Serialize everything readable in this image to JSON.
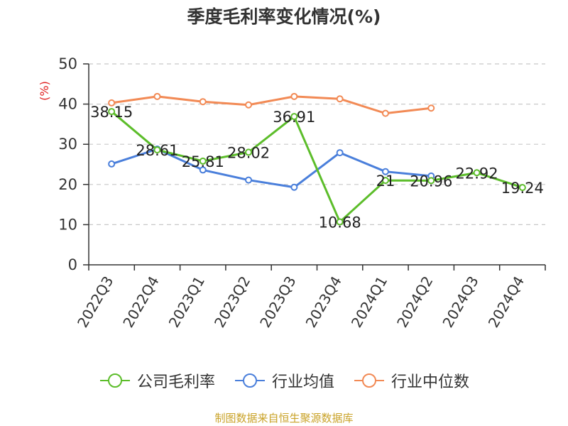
{
  "chart_data": {
    "type": "line",
    "title": "季度毛利率变化情况(%)",
    "ylabel": "(%)",
    "categories": [
      "2022Q3",
      "2022Q4",
      "2023Q1",
      "2023Q2",
      "2023Q3",
      "2023Q4",
      "2024Q1",
      "2024Q2",
      "2024Q3",
      "2024Q4"
    ],
    "ylim": [
      0,
      50
    ],
    "yticks": [
      0,
      10,
      20,
      30,
      40,
      50
    ],
    "grid": true,
    "legend_position": "bottom",
    "series": [
      {
        "name": "公司毛利率",
        "color": "#5cbd2a",
        "values": [
          38.15,
          28.61,
          25.81,
          28.02,
          36.91,
          10.68,
          21,
          20.96,
          22.92,
          19.24
        ],
        "labels": [
          "38.15",
          "28.61",
          "25.81",
          "28.02",
          "36.91",
          "10.68",
          "21",
          "20.96",
          "22.92",
          "19.24"
        ]
      },
      {
        "name": "行业均值",
        "color": "#4a7fdb",
        "values": [
          25.1,
          28.8,
          23.6,
          21.1,
          19.3,
          27.9,
          23.2,
          22.1,
          null,
          null
        ]
      },
      {
        "name": "行业中位数",
        "color": "#f28a55",
        "values": [
          40.3,
          41.9,
          40.6,
          39.8,
          41.9,
          41.3,
          37.7,
          39.0,
          null,
          null
        ]
      }
    ]
  },
  "source": "制图数据来自恒生聚源数据库"
}
